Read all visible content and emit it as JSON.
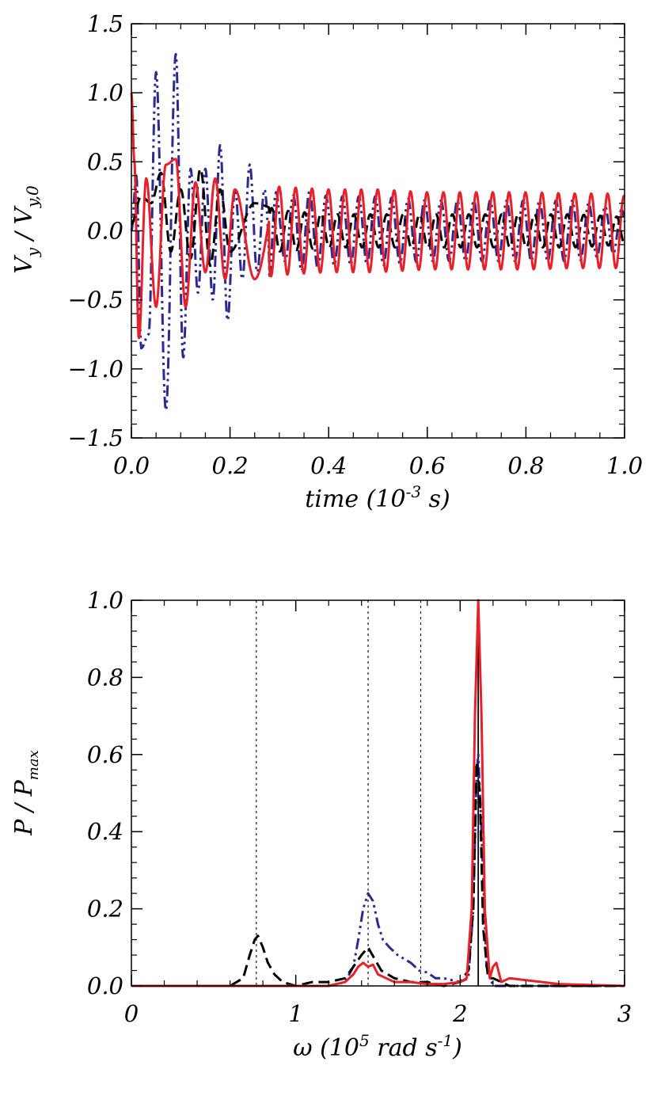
{
  "chart_data": [
    {
      "type": "line",
      "panel": "top",
      "xlabel": "time (10^-3 s)",
      "xlabel_parts": {
        "main": "time (10",
        "sup": "-3",
        "tail": " s)"
      },
      "ylabel": "V_y / V_y,0",
      "ylabel_parts": {
        "v1": "V",
        "s1": "y",
        "mid": " / ",
        "v2": "V",
        "s2": "y,0"
      },
      "xlim": [
        0.0,
        1.0
      ],
      "ylim": [
        -1.5,
        1.5
      ],
      "xticks": [
        0.0,
        0.2,
        0.4,
        0.6,
        0.8,
        1.0
      ],
      "xtick_labels": [
        "0.0",
        "0.2",
        "0.4",
        "0.6",
        "0.8",
        "1.0"
      ],
      "yticks": [
        -1.5,
        -1.0,
        -0.5,
        0.0,
        0.5,
        1.0,
        1.5
      ],
      "ytick_labels": [
        "−1.5",
        "−1.0",
        "−0.5",
        "0.0",
        "0.5",
        "1.0",
        "1.5"
      ],
      "series": [
        {
          "color": "#2b2b8f",
          "dash": "dash-dot-dot",
          "sampled": true,
          "x": [
            0.0,
            0.01,
            0.02,
            0.035,
            0.05,
            0.07,
            0.09,
            0.105,
            0.12,
            0.135,
            0.15,
            0.165,
            0.18,
            0.195,
            0.21,
            0.225,
            0.24,
            0.255,
            0.27,
            0.285,
            0.3,
            0.35,
            0.4,
            0.5,
            0.6,
            0.7,
            0.8,
            0.9,
            1.0
          ],
          "y": [
            0.0,
            0.4,
            -0.85,
            -0.75,
            1.15,
            -1.3,
            1.28,
            -0.92,
            0.45,
            -0.45,
            0.45,
            -0.5,
            0.62,
            -0.65,
            0.3,
            -0.35,
            0.48,
            -0.3,
            0.3,
            -0.4,
            0.2,
            -0.3,
            0.25,
            0.25,
            0.22,
            0.22,
            0.22,
            0.22,
            -0.15
          ]
        },
        {
          "color": "#000000",
          "dash": "dashed",
          "sampled": true,
          "x": [
            0.0,
            0.02,
            0.04,
            0.06,
            0.08,
            0.1,
            0.12,
            0.14,
            0.16,
            0.18,
            0.2,
            0.25,
            0.3,
            0.4,
            0.5,
            0.6,
            0.7,
            0.8,
            0.9,
            1.0
          ],
          "y": [
            0.05,
            0.25,
            0.2,
            0.42,
            -0.15,
            0.3,
            -0.2,
            0.45,
            -0.25,
            0.3,
            -0.15,
            0.2,
            0.15,
            0.12,
            0.12,
            0.12,
            0.12,
            0.12,
            0.12,
            -0.1
          ]
        },
        {
          "color": "#e8202a",
          "dash": "solid",
          "sampled": true,
          "x": [
            0.0,
            0.006,
            0.015,
            0.03,
            0.05,
            0.07,
            0.09,
            0.11,
            0.13,
            0.15,
            0.17,
            0.19,
            0.21,
            0.25,
            0.3,
            0.4,
            0.5,
            0.6,
            0.7,
            0.8,
            0.9,
            0.99,
            1.0
          ],
          "y": [
            1.0,
            0.5,
            -0.78,
            0.38,
            -0.55,
            0.48,
            0.52,
            -0.55,
            0.35,
            -0.3,
            0.38,
            -0.35,
            0.3,
            -0.35,
            0.32,
            0.3,
            0.3,
            0.28,
            0.28,
            0.28,
            0.27,
            0.27,
            -0.25
          ]
        }
      ]
    },
    {
      "type": "line",
      "panel": "bottom",
      "xlabel": "ω (10^5 rad s^-1)",
      "xlabel_parts": {
        "main": "ω (10",
        "sup": "5",
        "mid": " rad s",
        "sup2": "-1",
        "tail": ")"
      },
      "ylabel": "P / P_max",
      "ylabel_parts": {
        "v1": "P",
        "mid": " / ",
        "v2": "P",
        "s2": "max"
      },
      "xlim": [
        0,
        3
      ],
      "ylim": [
        0.0,
        1.0
      ],
      "xticks": [
        0,
        1,
        2,
        3
      ],
      "xtick_labels": [
        "0",
        "1",
        "2",
        "3"
      ],
      "yticks": [
        0.0,
        0.2,
        0.4,
        0.6,
        0.8,
        1.0
      ],
      "ytick_labels": [
        "0.0",
        "0.2",
        "0.4",
        "0.6",
        "0.8",
        "1.0"
      ],
      "reference_lines": [
        0.76,
        1.44,
        1.76,
        2.11
      ],
      "series": [
        {
          "color": "#2b2b8f",
          "dash": "dash-dot-dot",
          "x": [
            0.0,
            1.2,
            1.3,
            1.35,
            1.38,
            1.41,
            1.44,
            1.47,
            1.5,
            1.53,
            1.57,
            1.62,
            1.7,
            1.75,
            1.8,
            1.85,
            1.9,
            2.0,
            2.05,
            2.08,
            2.1,
            2.11,
            2.13,
            2.16,
            2.2,
            3.0
          ],
          "y": [
            0.0,
            0.0,
            0.01,
            0.05,
            0.12,
            0.2,
            0.24,
            0.22,
            0.16,
            0.12,
            0.1,
            0.08,
            0.06,
            0.04,
            0.035,
            0.02,
            0.02,
            0.01,
            0.02,
            0.2,
            0.55,
            0.6,
            0.4,
            0.05,
            0.0,
            0.0
          ]
        },
        {
          "color": "#000000",
          "dash": "dashed",
          "x": [
            0.0,
            0.6,
            0.68,
            0.72,
            0.75,
            0.77,
            0.8,
            0.83,
            0.87,
            0.92,
            1.0,
            1.1,
            1.2,
            1.3,
            1.35,
            1.4,
            1.44,
            1.48,
            1.52,
            1.6,
            1.7,
            1.8,
            1.9,
            2.0,
            2.05,
            2.08,
            2.1,
            2.12,
            2.14,
            2.17,
            2.2,
            2.3,
            3.0
          ],
          "y": [
            0.0,
            0.0,
            0.02,
            0.08,
            0.12,
            0.13,
            0.1,
            0.06,
            0.03,
            0.01,
            0.0,
            0.01,
            0.01,
            0.02,
            0.05,
            0.08,
            0.1,
            0.07,
            0.04,
            0.02,
            0.01,
            0.01,
            0.0,
            0.01,
            0.04,
            0.2,
            0.58,
            0.5,
            0.15,
            0.02,
            0.02,
            0.0,
            0.0
          ]
        },
        {
          "color": "#e8202a",
          "dash": "solid",
          "x": [
            0.0,
            1.2,
            1.3,
            1.35,
            1.38,
            1.41,
            1.44,
            1.47,
            1.5,
            1.55,
            1.6,
            1.7,
            1.8,
            1.9,
            2.0,
            2.04,
            2.07,
            2.09,
            2.11,
            2.13,
            2.15,
            2.18,
            2.2,
            2.22,
            2.25,
            2.3,
            2.4,
            2.5,
            2.6,
            3.0
          ],
          "y": [
            0.0,
            0.0,
            0.01,
            0.03,
            0.05,
            0.06,
            0.05,
            0.055,
            0.03,
            0.02,
            0.01,
            0.01,
            0.005,
            0.005,
            0.01,
            0.02,
            0.2,
            0.7,
            1.0,
            0.7,
            0.2,
            0.02,
            0.05,
            0.06,
            0.01,
            0.02,
            0.015,
            0.01,
            0.005,
            0.0
          ]
        }
      ]
    }
  ]
}
